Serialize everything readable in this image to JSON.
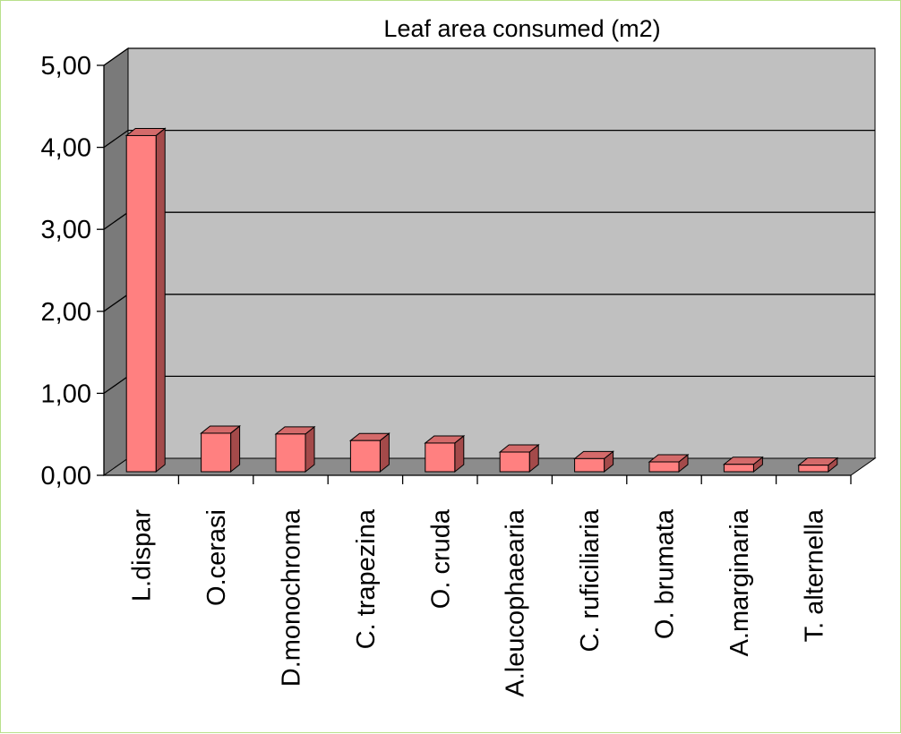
{
  "chart_data": {
    "type": "bar",
    "title": "Leaf area consumed (m2)",
    "xlabel": "",
    "ylabel": "",
    "categories": [
      "L.dispar",
      "O.cerasi",
      "D.monochroma",
      "C. trapezina",
      "O. cruda",
      "A.leucophaearia",
      "C. ruficiliaria",
      "O. brumata",
      "A.marginaria",
      "T. alternella"
    ],
    "values": [
      4.1,
      0.47,
      0.46,
      0.38,
      0.35,
      0.24,
      0.16,
      0.12,
      0.09,
      0.08
    ],
    "ylim": [
      0,
      5
    ],
    "yticks": [
      "0,00",
      "1,00",
      "2,00",
      "3,00",
      "4,00",
      "5,00"
    ],
    "grid": true,
    "style": "3d-column",
    "colors": {
      "bar_front": "#ff8080",
      "bar_side": "#a44a4a",
      "bar_top": "#d46a6a",
      "wall": "#c0c0c0",
      "side_wall": "#7a7a7a",
      "floor": "#8c8c8c"
    }
  }
}
